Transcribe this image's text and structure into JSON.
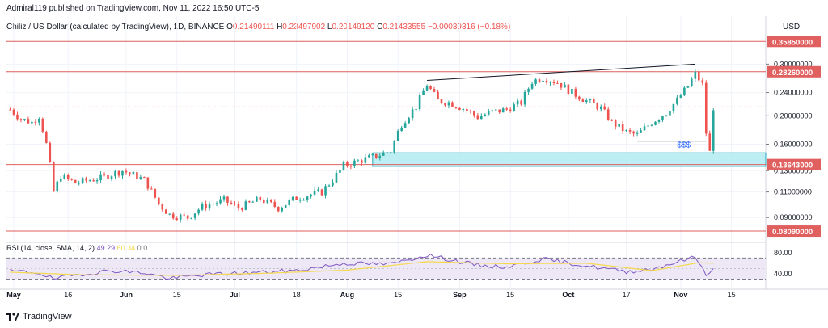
{
  "header": {
    "publisher": "Admiral119 published on TradingView.com, Nov 11, 2022 16:50 UTC-5"
  },
  "legend": {
    "symbol": "Chiliz / US Dollar (calculated by TradingView), 1D, BINANCE",
    "open_label": "O",
    "open": "0.21490111",
    "high_label": "H",
    "high": "0.23497902",
    "low_label": "L",
    "low": "0.20149120",
    "close_label": "C",
    "close": "0.21433555",
    "change": "−0.00039316 (−0.18%)"
  },
  "rsi_legend": {
    "label": "RSI (14, close, SMA, 14, 2)",
    "rsi_value": "49.29",
    "sma_value": "60.34",
    "val1": "0",
    "val2": "0"
  },
  "axis": {
    "currency": "USD"
  },
  "logo": {
    "text": "TradingView"
  },
  "colors": {
    "up": "#26a69a",
    "down": "#ef5350",
    "level_line": "#e05f5f",
    "zone_fill": "#b2ebf2",
    "zone_border": "#26a6b8",
    "rsi_line": "#7e57c2",
    "rsi_sma": "#f5d94d",
    "rsi_band": "#ede7f6",
    "trendline": "#131722"
  },
  "annotation": {
    "liquidity_text": "$$$"
  },
  "chart_data": {
    "type": "candlestick",
    "y_scale": "log",
    "ylim": [
      0.075,
      0.39
    ],
    "y_ticks": [
      "0.30000000",
      "0.24000000",
      "0.20000000",
      "0.16000000",
      "0.13000000",
      "0.11000000",
      "0.09000000"
    ],
    "x_tick_labels": [
      "May",
      "16",
      "Jun",
      "15",
      "Jul",
      "18",
      "Aug",
      "15",
      "Sep",
      "15",
      "Oct",
      "17",
      "Nov",
      "15"
    ],
    "x_tick_dates": [
      "2022-05-01",
      "2022-05-16",
      "2022-06-01",
      "2022-06-15",
      "2022-07-01",
      "2022-07-18",
      "2022-08-01",
      "2022-08-15",
      "2022-09-01",
      "2022-09-15",
      "2022-10-01",
      "2022-10-17",
      "2022-11-01",
      "2022-11-15"
    ],
    "price_levels": [
      {
        "value": 0.3585,
        "label": "0.35850000"
      },
      {
        "value": 0.2826,
        "label": "0.28260000"
      },
      {
        "value": 0.13643,
        "label": "0.13643000"
      },
      {
        "value": 0.0809,
        "label": "0.08090000"
      }
    ],
    "zone": {
      "low": 0.1345,
      "high": 0.1495
    },
    "trendlines": [
      {
        "from": [
          "2022-08-23",
          0.264
        ],
        "to": [
          "2022-11-05",
          0.3
        ]
      },
      {
        "from": [
          "2022-10-20",
          0.164
        ],
        "to": [
          "2022-11-08",
          0.164
        ]
      }
    ],
    "liquidity_label_at": [
      "2022-10-31",
      0.156
    ],
    "last_price": 0.2143,
    "close_series_points": [
      [
        "2022-04-30",
        0.21
      ],
      [
        "2022-05-03",
        0.195
      ],
      [
        "2022-05-06",
        0.19
      ],
      [
        "2022-05-08",
        0.2
      ],
      [
        "2022-05-10",
        0.16
      ],
      [
        "2022-05-12",
        0.11
      ],
      [
        "2022-05-14",
        0.125
      ],
      [
        "2022-05-18",
        0.118
      ],
      [
        "2022-05-25",
        0.123
      ],
      [
        "2022-05-31",
        0.13
      ],
      [
        "2022-06-06",
        0.121
      ],
      [
        "2022-06-10",
        0.1
      ],
      [
        "2022-06-13",
        0.092
      ],
      [
        "2022-06-18",
        0.09
      ],
      [
        "2022-06-22",
        0.098
      ],
      [
        "2022-06-28",
        0.103
      ],
      [
        "2022-07-02",
        0.097
      ],
      [
        "2022-07-08",
        0.104
      ],
      [
        "2022-07-13",
        0.097
      ],
      [
        "2022-07-18",
        0.105
      ],
      [
        "2022-07-25",
        0.11
      ],
      [
        "2022-07-28",
        0.121
      ],
      [
        "2022-07-31",
        0.135
      ],
      [
        "2022-08-04",
        0.14
      ],
      [
        "2022-08-09",
        0.146
      ],
      [
        "2022-08-13",
        0.152
      ],
      [
        "2022-08-16",
        0.188
      ],
      [
        "2022-08-20",
        0.215
      ],
      [
        "2022-08-23",
        0.255
      ],
      [
        "2022-08-26",
        0.225
      ],
      [
        "2022-08-29",
        0.222
      ],
      [
        "2022-09-02",
        0.212
      ],
      [
        "2022-09-06",
        0.198
      ],
      [
        "2022-09-10",
        0.206
      ],
      [
        "2022-09-14",
        0.21
      ],
      [
        "2022-09-18",
        0.222
      ],
      [
        "2022-09-21",
        0.262
      ],
      [
        "2022-09-24",
        0.27
      ],
      [
        "2022-09-28",
        0.26
      ],
      [
        "2022-10-02",
        0.24
      ],
      [
        "2022-10-06",
        0.225
      ],
      [
        "2022-10-10",
        0.212
      ],
      [
        "2022-10-13",
        0.19
      ],
      [
        "2022-10-17",
        0.176
      ],
      [
        "2022-10-20",
        0.172
      ],
      [
        "2022-10-24",
        0.19
      ],
      [
        "2022-10-28",
        0.205
      ],
      [
        "2022-10-31",
        0.226
      ],
      [
        "2022-11-03",
        0.252
      ],
      [
        "2022-11-05",
        0.278
      ],
      [
        "2022-11-07",
        0.255
      ],
      [
        "2022-11-08",
        0.175
      ],
      [
        "2022-11-09",
        0.15
      ],
      [
        "2022-11-10",
        0.214
      ]
    ],
    "rsi": {
      "ylim": [
        20,
        95
      ],
      "band": [
        30,
        70
      ],
      "ticks": [
        "80.00",
        "40.00"
      ],
      "current": 49.29,
      "sma_current": 60.34,
      "points": [
        [
          "2022-04-30",
          45
        ],
        [
          "2022-05-08",
          42
        ],
        [
          "2022-05-12",
          30
        ],
        [
          "2022-05-18",
          38
        ],
        [
          "2022-05-28",
          46
        ],
        [
          "2022-06-06",
          42
        ],
        [
          "2022-06-13",
          31
        ],
        [
          "2022-06-22",
          38
        ],
        [
          "2022-07-05",
          42
        ],
        [
          "2022-07-18",
          46
        ],
        [
          "2022-07-31",
          60
        ],
        [
          "2022-08-13",
          58
        ],
        [
          "2022-08-23",
          76
        ],
        [
          "2022-09-06",
          56
        ],
        [
          "2022-09-14",
          53
        ],
        [
          "2022-09-24",
          68
        ],
        [
          "2022-10-06",
          55
        ],
        [
          "2022-10-17",
          44
        ],
        [
          "2022-10-24",
          49
        ],
        [
          "2022-11-05",
          72
        ],
        [
          "2022-11-08",
          40
        ],
        [
          "2022-11-10",
          49
        ]
      ],
      "sma_points": [
        [
          "2022-04-30",
          43
        ],
        [
          "2022-05-20",
          38
        ],
        [
          "2022-06-15",
          37
        ],
        [
          "2022-07-10",
          41
        ],
        [
          "2022-08-01",
          47
        ],
        [
          "2022-08-23",
          63
        ],
        [
          "2022-09-14",
          59
        ],
        [
          "2022-10-06",
          60
        ],
        [
          "2022-10-24",
          46
        ],
        [
          "2022-11-06",
          61
        ],
        [
          "2022-11-10",
          60
        ]
      ]
    }
  }
}
